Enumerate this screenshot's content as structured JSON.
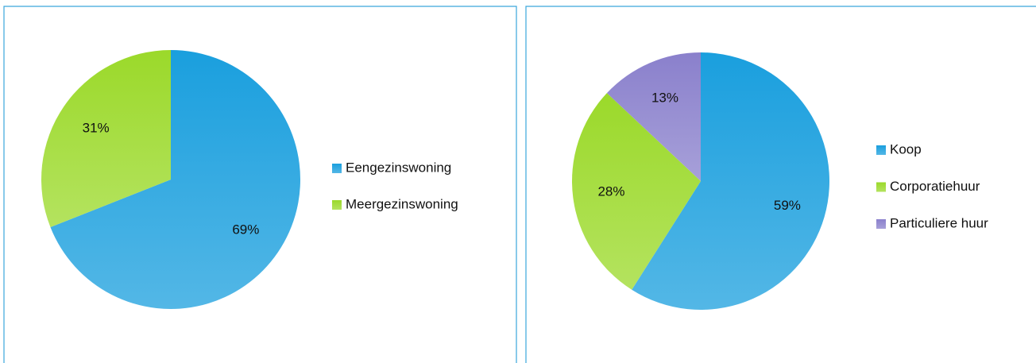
{
  "chart_data": [
    {
      "type": "pie",
      "categories": [
        "Eengezinswoning",
        "Meergezinswoning"
      ],
      "values": [
        69,
        31
      ],
      "value_labels": [
        "69%",
        "31%"
      ],
      "colors": [
        "#1a9fde",
        "#9bd92a"
      ]
    },
    {
      "type": "pie",
      "categories": [
        "Koop",
        "Corporatiehuur",
        "Particuliere huur"
      ],
      "values": [
        59,
        28,
        13
      ],
      "value_labels": [
        "59%",
        "28%",
        "13%"
      ],
      "colors": [
        "#1a9fde",
        "#9bd92a",
        "#8a80cc"
      ]
    }
  ]
}
